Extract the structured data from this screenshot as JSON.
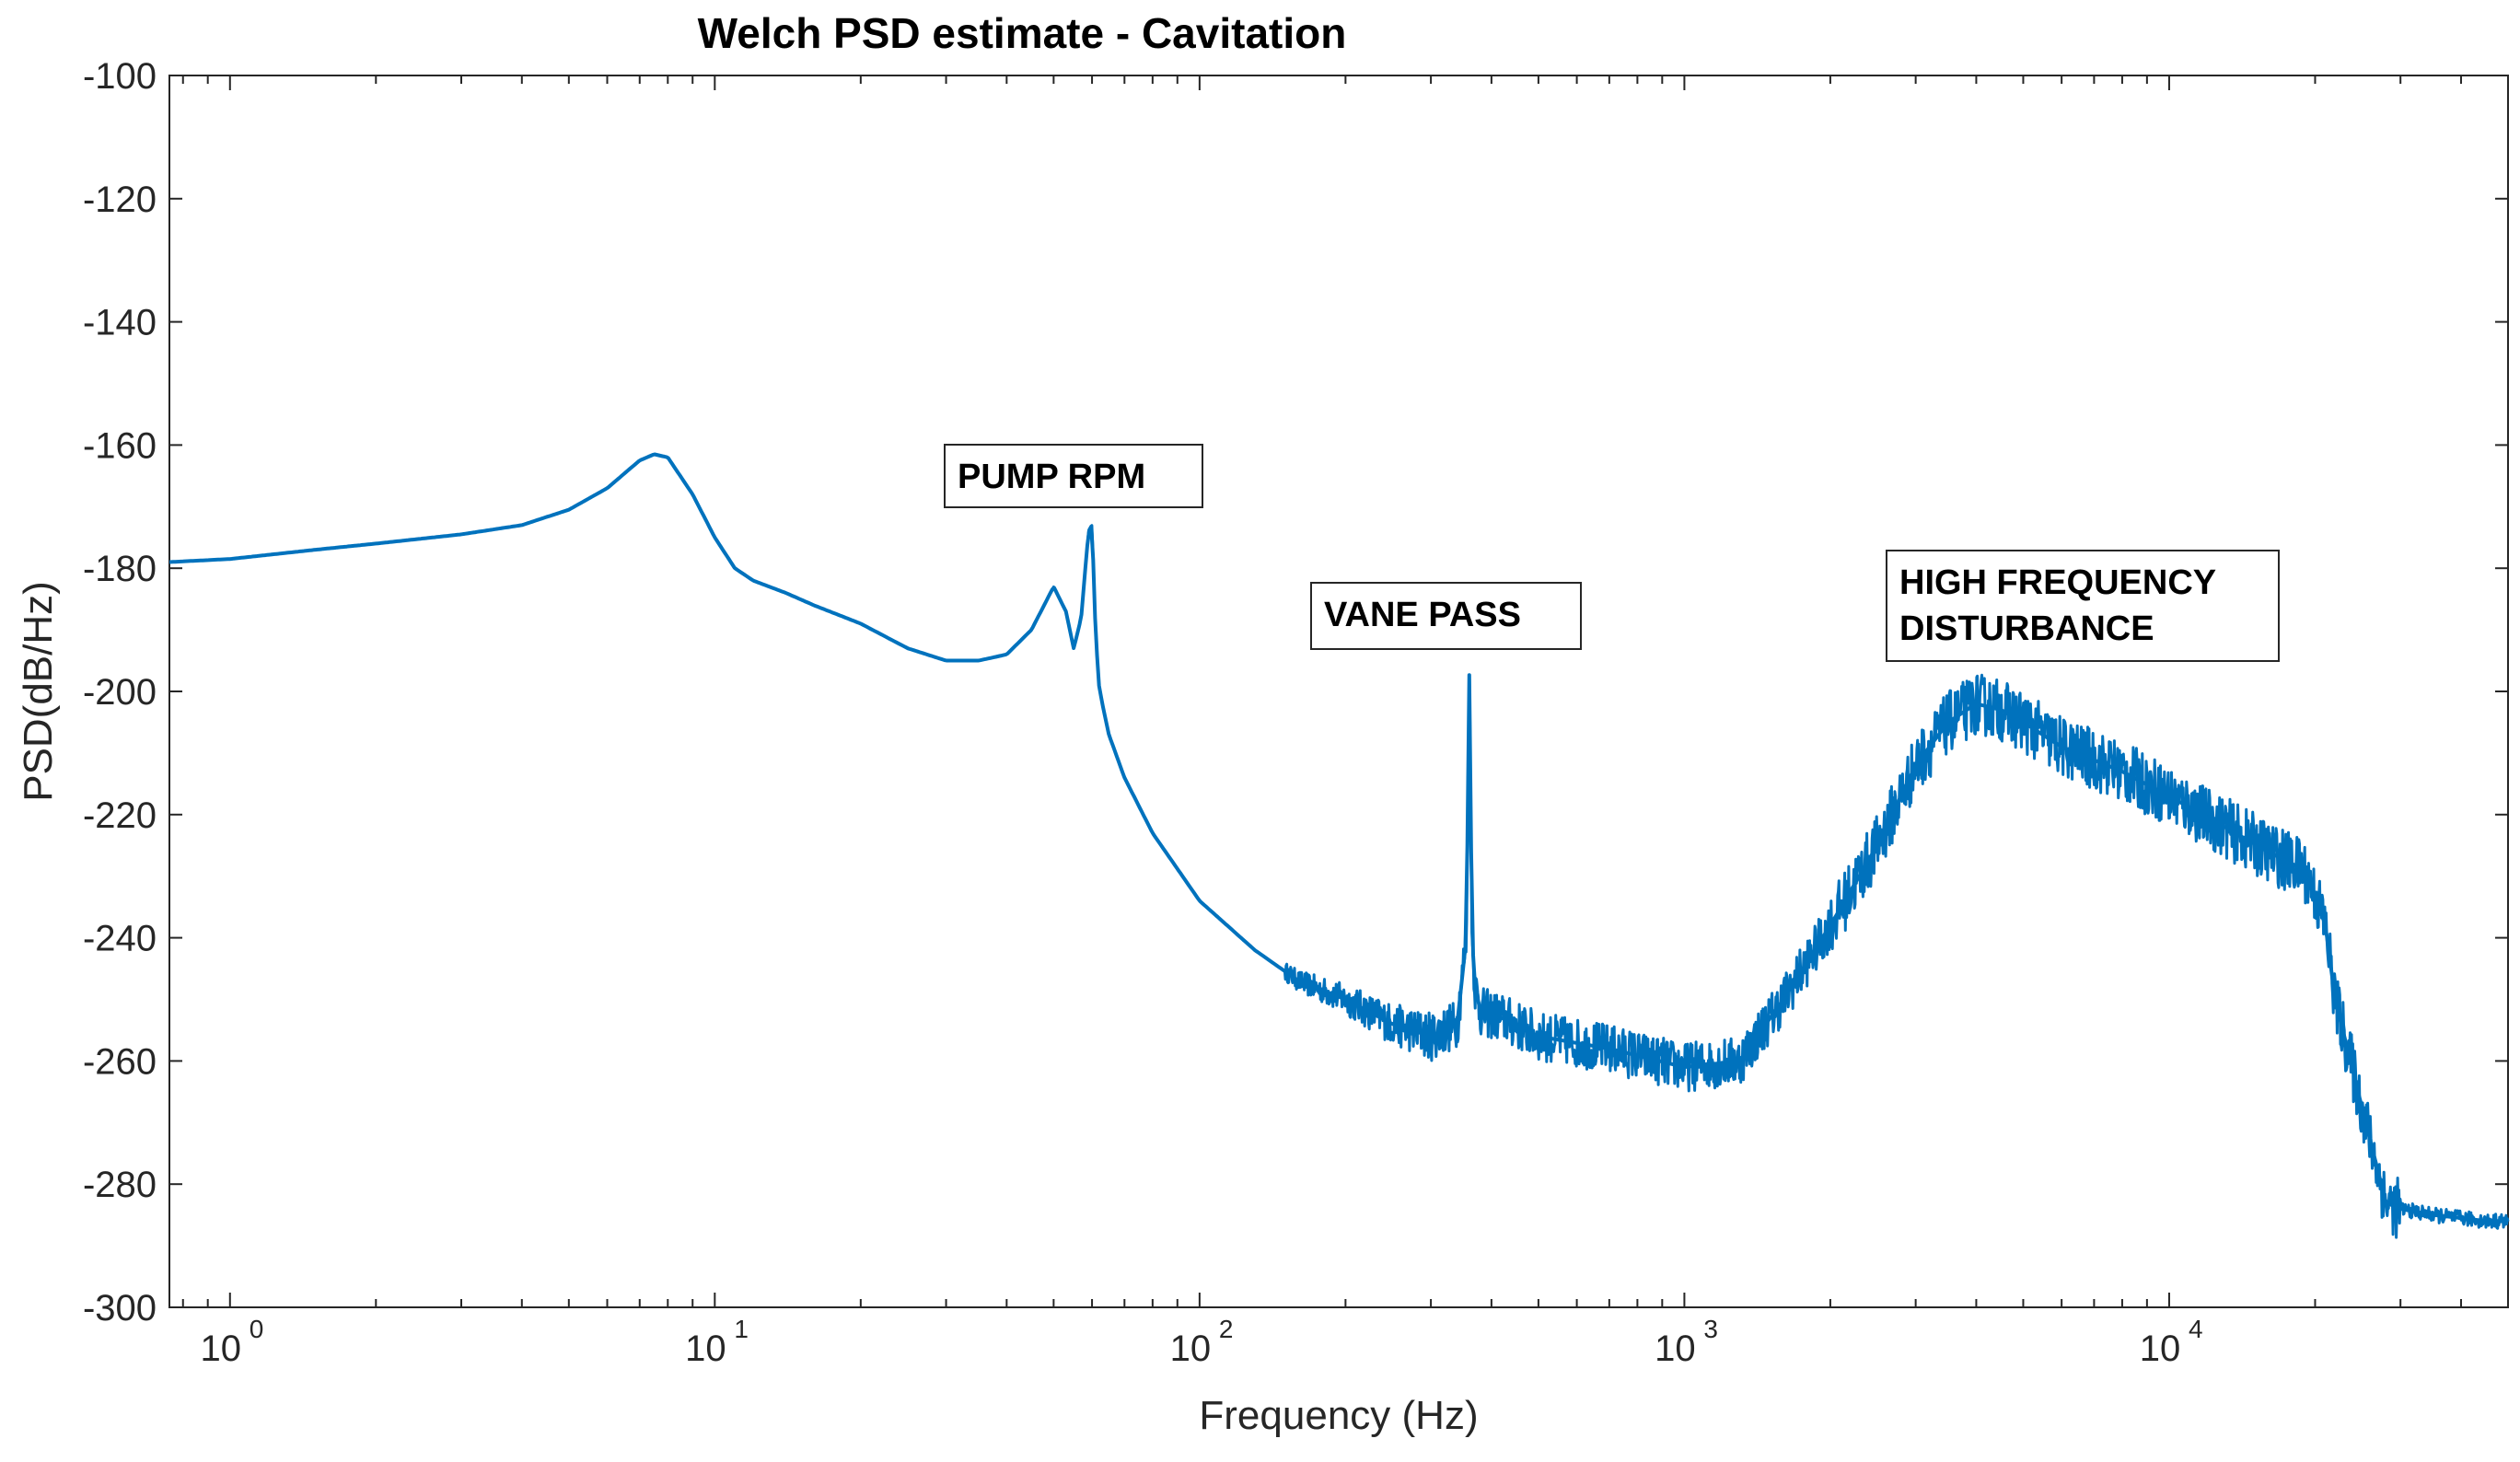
{
  "chart_data": {
    "type": "line",
    "title": "Welch PSD estimate - Cavitation",
    "xlabel": "Frequency (Hz)",
    "ylabel": "PSD(dB/Hz)",
    "xscale": "log",
    "xlim": [
      0.75,
      50000
    ],
    "ylim": [
      -300,
      -100
    ],
    "grid": false,
    "x_ticks": [
      {
        "value": 1,
        "base": "10",
        "exp": "0"
      },
      {
        "value": 10,
        "base": "10",
        "exp": "1"
      },
      {
        "value": 100,
        "base": "10",
        "exp": "2"
      },
      {
        "value": 1000,
        "base": "10",
        "exp": "3"
      },
      {
        "value": 10000,
        "base": "10",
        "exp": "4"
      }
    ],
    "y_ticks": [
      -100,
      -120,
      -140,
      -160,
      -180,
      -200,
      -220,
      -240,
      -260,
      -280,
      -300
    ],
    "line_color": "#0072BD",
    "series": [
      {
        "name": "PSD",
        "x": [
          0.75,
          1,
          1.5,
          2,
          3,
          4,
          5,
          6,
          7,
          7.5,
          8,
          9,
          10,
          11,
          12,
          14,
          16,
          20,
          25,
          30,
          35,
          40,
          45,
          50,
          53,
          55,
          57,
          59,
          60,
          61,
          62,
          63,
          65,
          70,
          80,
          100,
          130,
          160,
          200,
          250,
          300,
          340,
          355,
          360,
          365,
          370,
          380,
          420,
          500,
          700,
          1000,
          1300,
          1600,
          2000,
          2500,
          3000,
          3500,
          4000,
          4500,
          5000,
          6000,
          8000,
          10000,
          13000,
          16000,
          19000,
          20000,
          21000,
          22000,
          24000,
          26000,
          28000,
          30000,
          35000,
          40000,
          45000,
          50000
        ],
        "y": [
          -179,
          -178.5,
          -177,
          -176,
          -174.5,
          -173,
          -170.5,
          -167,
          -162.5,
          -161.5,
          -162,
          -168,
          -175,
          -180,
          -182,
          -184,
          -186,
          -189,
          -193,
          -195,
          -195,
          -194,
          -190,
          -183,
          -187,
          -193,
          -188,
          -174,
          -173,
          -190,
          -199,
          -202,
          -207,
          -214,
          -223,
          -234,
          -242,
          -247,
          -250,
          -254,
          -256,
          -254,
          -240,
          -197,
          -240,
          -248,
          -252,
          -253,
          -256,
          -258,
          -261,
          -260,
          -250,
          -238,
          -225,
          -212,
          -205,
          -202,
          -203,
          -205,
          -209,
          -213,
          -217,
          -222,
          -226,
          -229,
          -233,
          -238,
          -250,
          -262,
          -273,
          -283,
          -284,
          -285,
          -285.5,
          -286,
          -286
        ]
      }
    ],
    "annotations": [
      {
        "lines": [
          "PUMP RPM"
        ]
      },
      {
        "lines": [
          "VANE PASS"
        ]
      },
      {
        "lines": [
          "HIGH FREQUENCY",
          "DISTURBANCE"
        ]
      }
    ]
  }
}
